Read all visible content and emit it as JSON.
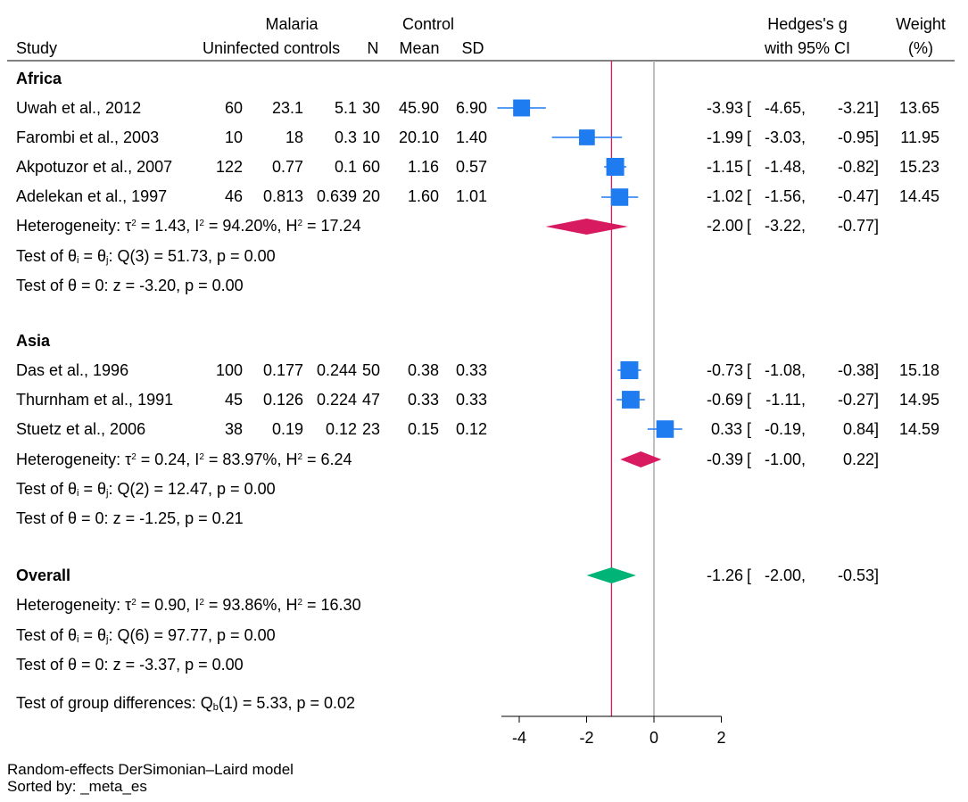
{
  "header": {
    "malaria_label": "Malaria",
    "control_label": "Control",
    "study_label": "Study",
    "uninfected_label": "Uninfected controls",
    "n_label": "N",
    "mean_label": "Mean",
    "sd_label": "SD",
    "hedges_label": "Hedges's g",
    "ci_label": "with 95% CI",
    "weight_label": "Weight",
    "weight_unit": "(%)"
  },
  "groups": [
    {
      "name": "Africa",
      "studies": [
        {
          "study": "Uwah et al., 2012",
          "c1": "60",
          "c2": "23.1",
          "c3": "5.1",
          "n": "30",
          "mean": "45.90",
          "sd": "6.90",
          "g": "-3.93",
          "lo": "-4.65,",
          "hi": "-3.21]",
          "w": "13.65"
        },
        {
          "study": "Farombi et al., 2003",
          "c1": "10",
          "c2": "18",
          "c3": "0.3",
          "n": "10",
          "mean": "20.10",
          "sd": "1.40",
          "g": "-1.99",
          "lo": "-3.03,",
          "hi": "-0.95]",
          "w": "11.95"
        },
        {
          "study": "Akpotuzor et al., 2007",
          "c1": "122",
          "c2": "0.77",
          "c3": "0.1",
          "n": "60",
          "mean": "1.16",
          "sd": "0.57",
          "g": "-1.15",
          "lo": "-1.48,",
          "hi": "-0.82]",
          "w": "15.23"
        },
        {
          "study": "Adelekan et al., 1997",
          "c1": "46",
          "c2": "0.813",
          "c3": "0.639",
          "n": "20",
          "mean": "1.60",
          "sd": "1.01",
          "g": "-1.02",
          "lo": "-1.56,",
          "hi": "-0.47]",
          "w": "14.45"
        }
      ],
      "het": {
        "prefix": "Heterogeneity: τ",
        "tau2": " = 1.43, I",
        "i2": " = 94.20%, H",
        "h2": " = 17.24"
      },
      "summary": {
        "g": "-2.00",
        "lo": "-3.22,",
        "hi": "-0.77]"
      },
      "test1": {
        "a": "Test of θ",
        "b": " = θ",
        "c": ": Q(3) = 51.73, p = 0.00"
      },
      "test2": "Test of θ = 0: z = -3.20, p = 0.00"
    },
    {
      "name": "Asia",
      "studies": [
        {
          "study": "Das et al., 1996",
          "c1": "100",
          "c2": "0.177",
          "c3": "0.244",
          "n": "50",
          "mean": "0.38",
          "sd": "0.33",
          "g": "-0.73",
          "lo": "-1.08,",
          "hi": "-0.38]",
          "w": "15.18"
        },
        {
          "study": "Thurnham et al., 1991",
          "c1": "45",
          "c2": "0.126",
          "c3": "0.224",
          "n": "47",
          "mean": "0.33",
          "sd": "0.33",
          "g": "-0.69",
          "lo": "-1.11,",
          "hi": "-0.27]",
          "w": "14.95"
        },
        {
          "study": "Stuetz et al., 2006",
          "c1": "38",
          "c2": "0.19",
          "c3": "0.12",
          "n": "23",
          "mean": "0.15",
          "sd": "0.12",
          "g": "0.33",
          "lo": "-0.19,",
          "hi": "0.84]",
          "w": "14.59"
        }
      ],
      "het": {
        "prefix": "Heterogeneity: τ",
        "tau2": " = 0.24, I",
        "i2": " = 83.97%, H",
        "h2": " = 6.24"
      },
      "summary": {
        "g": "-0.39",
        "lo": "-1.00,",
        "hi": "0.22]"
      },
      "test1": {
        "a": "Test of θ",
        "b": " = θ",
        "c": ": Q(2) = 12.47, p = 0.00"
      },
      "test2": "Test of θ = 0: z = -1.25, p = 0.21"
    }
  ],
  "overall": {
    "name": "Overall",
    "summary": {
      "g": "-1.26",
      "lo": "-2.00,",
      "hi": "-0.53]"
    },
    "het": {
      "prefix": "Heterogeneity: τ",
      "tau2": " = 0.90, I",
      "i2": " = 93.86%, H",
      "h2": " = 16.30"
    },
    "test1": {
      "a": "Test of θ",
      "b": " = θ",
      "c": ": Q(6) = 97.77, p = 0.00"
    },
    "test2": "Test of θ = 0: z = -3.37, p = 0.00",
    "groupdiff": {
      "a": "Test of group differences: Q",
      "b": "(1) = 5.33, p = 0.02"
    }
  },
  "sup": {
    "two": "2"
  },
  "sub": {
    "i": "i",
    "j": "j",
    "b": "b"
  },
  "footer": {
    "model": "Random-effects DerSimonian–Laird model",
    "sorted": "Sorted by: _meta_es"
  },
  "colors": {
    "study": "#1E7BF0",
    "subgroup": "#D81B60",
    "overall": "#00B377",
    "overall_line": "#D81B60",
    "null_line": "#AAAAAA"
  },
  "chart_data": {
    "type": "forest",
    "title": "",
    "xlabel": "",
    "xlim": [
      -4.7,
      2
    ],
    "xticks": [
      -4,
      -2,
      0,
      2
    ],
    "tick_labels": [
      "-4",
      "-2",
      "0",
      "2"
    ],
    "null_value": 0,
    "overall_value": -1.26,
    "studies": [
      {
        "label": "Uwah et al., 2012",
        "group": "Africa",
        "g": -3.93,
        "lo": -4.65,
        "hi": -3.21,
        "weight": 13.65
      },
      {
        "label": "Farombi et al., 2003",
        "group": "Africa",
        "g": -1.99,
        "lo": -3.03,
        "hi": -0.95,
        "weight": 11.95
      },
      {
        "label": "Akpotuzor et al., 2007",
        "group": "Africa",
        "g": -1.15,
        "lo": -1.48,
        "hi": -0.82,
        "weight": 15.23
      },
      {
        "label": "Adelekan et al., 1997",
        "group": "Africa",
        "g": -1.02,
        "lo": -1.56,
        "hi": -0.47,
        "weight": 14.45
      },
      {
        "label": "Das et al., 1996",
        "group": "Asia",
        "g": -0.73,
        "lo": -1.08,
        "hi": -0.38,
        "weight": 15.18
      },
      {
        "label": "Thurnham et al., 1991",
        "group": "Asia",
        "g": -0.69,
        "lo": -1.11,
        "hi": -0.27,
        "weight": 14.95
      },
      {
        "label": "Stuetz et al., 2006",
        "group": "Asia",
        "g": 0.33,
        "lo": -0.19,
        "hi": 0.84,
        "weight": 14.59
      }
    ],
    "summaries": [
      {
        "label": "Africa",
        "g": -2.0,
        "lo": -3.22,
        "hi": -0.77,
        "kind": "subgroup"
      },
      {
        "label": "Asia",
        "g": -0.39,
        "lo": -1.0,
        "hi": 0.22,
        "kind": "subgroup"
      },
      {
        "label": "Overall",
        "g": -1.26,
        "lo": -2.0,
        "hi": -0.53,
        "kind": "overall"
      }
    ]
  }
}
